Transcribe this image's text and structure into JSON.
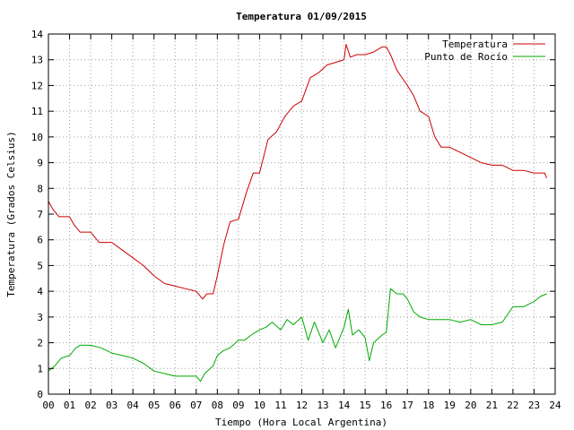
{
  "chart_data": {
    "type": "line",
    "title": "Temperatura 01/09/2015",
    "xlabel": "Tiempo (Hora Local Argentina)",
    "ylabel": "Temperatura (Grados Celsius)",
    "xlim": [
      0,
      24
    ],
    "ylim": [
      0,
      14
    ],
    "grid": true,
    "legend_position": "top-right",
    "xticks": [
      "00",
      "01",
      "02",
      "03",
      "04",
      "05",
      "06",
      "07",
      "08",
      "09",
      "10",
      "11",
      "12",
      "13",
      "14",
      "15",
      "16",
      "17",
      "18",
      "19",
      "20",
      "21",
      "22",
      "23",
      "24"
    ],
    "yticks": [
      "0",
      "1",
      "2",
      "3",
      "4",
      "5",
      "6",
      "7",
      "8",
      "9",
      "10",
      "11",
      "12",
      "13",
      "14"
    ],
    "series": [
      {
        "name": "Temperatura",
        "color": "#cc0000",
        "x": [
          0.0,
          0.2,
          0.5,
          1.0,
          1.2,
          1.5,
          2.0,
          2.4,
          3.0,
          3.5,
          4.0,
          4.5,
          5.0,
          5.5,
          6.0,
          6.5,
          7.0,
          7.3,
          7.5,
          7.8,
          8.0,
          8.3,
          8.6,
          9.0,
          9.4,
          9.7,
          10.0,
          10.4,
          10.8,
          11.2,
          11.6,
          12.0,
          12.4,
          12.8,
          13.2,
          13.6,
          14.0,
          14.1,
          14.3,
          14.6,
          15.0,
          15.4,
          15.8,
          16.0,
          16.2,
          16.5,
          17.0,
          17.3,
          17.6,
          18.0,
          18.3,
          18.6,
          19.0,
          19.5,
          20.0,
          20.5,
          21.0,
          21.5,
          22.0,
          22.5,
          23.0,
          23.3,
          23.5,
          23.6
        ],
        "values": [
          7.5,
          7.2,
          6.9,
          6.9,
          6.6,
          6.3,
          6.3,
          5.9,
          5.9,
          5.6,
          5.3,
          5.0,
          4.6,
          4.3,
          4.2,
          4.1,
          4.0,
          3.7,
          3.9,
          3.9,
          4.6,
          5.8,
          6.7,
          6.8,
          7.9,
          8.6,
          8.6,
          9.9,
          10.2,
          10.8,
          11.2,
          11.4,
          12.3,
          12.5,
          12.8,
          12.9,
          13.0,
          13.6,
          13.1,
          13.2,
          13.2,
          13.3,
          13.5,
          13.5,
          13.2,
          12.6,
          12.0,
          11.6,
          11.0,
          10.8,
          10.0,
          9.6,
          9.6,
          9.4,
          9.2,
          9.0,
          8.9,
          8.9,
          8.7,
          8.7,
          8.6,
          8.6,
          8.6,
          8.4
        ]
      },
      {
        "name": "Punto de Rocío",
        "color": "#00aa00",
        "x": [
          0.0,
          0.3,
          0.6,
          1.0,
          1.3,
          1.5,
          2.0,
          2.5,
          3.0,
          3.5,
          4.0,
          4.5,
          5.0,
          5.5,
          6.0,
          6.5,
          7.0,
          7.2,
          7.4,
          7.8,
          8.0,
          8.3,
          8.6,
          9.0,
          9.3,
          9.6,
          10.0,
          10.3,
          10.6,
          11.0,
          11.3,
          11.6,
          12.0,
          12.3,
          12.6,
          13.0,
          13.3,
          13.6,
          14.0,
          14.2,
          14.4,
          14.7,
          15.0,
          15.2,
          15.4,
          15.8,
          16.0,
          16.2,
          16.5,
          16.8,
          17.0,
          17.3,
          17.6,
          18.0,
          18.5,
          19.0,
          19.5,
          20.0,
          20.5,
          21.0,
          21.5,
          22.0,
          22.5,
          23.0,
          23.3,
          23.6
        ],
        "values": [
          0.9,
          1.1,
          1.4,
          1.5,
          1.8,
          1.9,
          1.9,
          1.8,
          1.6,
          1.5,
          1.4,
          1.2,
          0.9,
          0.8,
          0.7,
          0.7,
          0.7,
          0.5,
          0.8,
          1.1,
          1.5,
          1.7,
          1.8,
          2.1,
          2.1,
          2.3,
          2.5,
          2.6,
          2.8,
          2.5,
          2.9,
          2.7,
          3.0,
          2.1,
          2.8,
          2.0,
          2.5,
          1.8,
          2.6,
          3.3,
          2.3,
          2.5,
          2.2,
          1.3,
          2.0,
          2.3,
          2.4,
          4.1,
          3.9,
          3.9,
          3.7,
          3.2,
          3.0,
          2.9,
          2.9,
          2.9,
          2.8,
          2.9,
          2.7,
          2.7,
          2.8,
          3.4,
          3.4,
          3.6,
          3.8,
          3.9
        ]
      }
    ]
  }
}
